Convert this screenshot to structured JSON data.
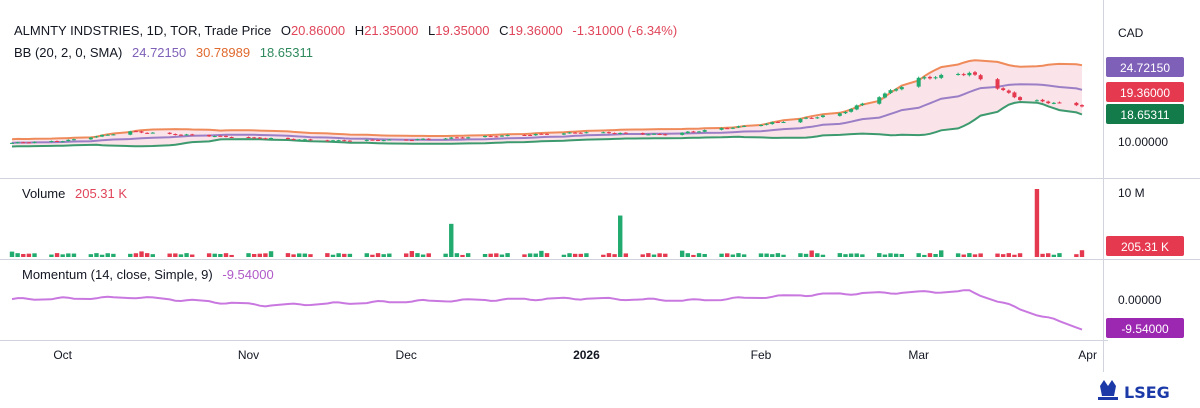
{
  "header": {
    "symbol": "ALMNTY INDSTRIES, 1D, TOR, Trade Price",
    "open_label": "O",
    "open": "20.86000",
    "high_label": "H",
    "high": "21.35000",
    "low_label": "L",
    "low": "19.35000",
    "close_label": "C",
    "close": "19.36000",
    "change": "-1.31000 (-6.34%)"
  },
  "bb": {
    "label": "BB (20, 2, 0, SMA)",
    "basis": "24.72150",
    "upper": "30.78989",
    "lower": "18.65311"
  },
  "volume": {
    "label": "Volume",
    "value": "205.31 K",
    "axis_tick": "10 M",
    "tag": "205.31 K"
  },
  "momentum": {
    "label": "Momentum (14, close, Simple, 9)",
    "value": "-9.54000",
    "axis_tick": "0.00000",
    "tag": "-9.54000"
  },
  "price_axis": {
    "currency": "CAD",
    "tick": "10.00000",
    "tag_basis": "24.72150",
    "tag_close": "19.36000",
    "tag_lower": "18.65311"
  },
  "x_axis": {
    "labels": [
      "Oct",
      "Nov",
      "Dec",
      "2026",
      "Feb",
      "Mar",
      "Apr"
    ]
  },
  "branding": {
    "logo": "LSEG"
  },
  "colors": {
    "up": "#26a69a",
    "up_strong": "#22ab6e",
    "down": "#ef5350",
    "down_strong": "#e53950",
    "basis": "#9b7fc6",
    "upper": "#ef8a5a",
    "lower": "#3d9a6e",
    "momentum": "#c978e0",
    "band_fill": "#fbe3ea"
  },
  "chart_data": [
    {
      "type": "candlestick",
      "title": "ALMNTY INDSTRIES, 1D, TOR, Trade Price",
      "x_range": [
        "2025-09-22",
        "2026-03-31"
      ],
      "ohlc_last": {
        "open": 20.86,
        "high": 21.35,
        "low": 19.35,
        "close": 19.36
      },
      "y_ticks": [
        10.0
      ],
      "anchors": [
        {
          "date": "2025-09-22",
          "close": 9.5
        },
        {
          "date": "2025-10-01",
          "close": 10.0
        },
        {
          "date": "2025-10-13",
          "close": 12.5
        },
        {
          "date": "2025-10-20",
          "close": 11.8
        },
        {
          "date": "2025-11-03",
          "close": 10.9
        },
        {
          "date": "2025-11-17",
          "close": 10.1
        },
        {
          "date": "2025-12-01",
          "close": 10.3
        },
        {
          "date": "2025-12-15",
          "close": 11.2
        },
        {
          "date": "2026-01-02",
          "close": 12.3
        },
        {
          "date": "2026-01-16",
          "close": 11.7
        },
        {
          "date": "2026-02-02",
          "close": 14.4
        },
        {
          "date": "2026-02-16",
          "close": 17.2
        },
        {
          "date": "2026-03-02",
          "close": 26.5
        },
        {
          "date": "2026-03-11",
          "close": 28.0
        },
        {
          "date": "2026-03-20",
          "close": 21.0
        },
        {
          "date": "2026-03-31",
          "close": 19.36
        }
      ],
      "bollinger": {
        "period": 20,
        "mult": 2,
        "basis_last": 24.7215,
        "upper_last": 30.78989,
        "lower_last": 18.65311
      }
    },
    {
      "type": "bar",
      "title": "Volume",
      "last_value": "205.31 K",
      "y_ticks": [
        "10 M"
      ],
      "spikes": [
        {
          "date": "2025-12-09",
          "value": 4.0
        },
        {
          "date": "2026-01-08",
          "value": 5.0
        },
        {
          "date": "2026-03-23",
          "value": 8.2
        }
      ]
    },
    {
      "type": "line",
      "title": "Momentum (14, close, Simple, 9)",
      "last_value": -9.54,
      "y_ticks": [
        0.0
      ],
      "anchors": [
        {
          "date": "2025-09-22",
          "value": 0.3
        },
        {
          "date": "2025-10-14",
          "value": 0.9
        },
        {
          "date": "2025-11-06",
          "value": -1.8
        },
        {
          "date": "2025-12-01",
          "value": -0.4
        },
        {
          "date": "2026-01-02",
          "value": 0.5
        },
        {
          "date": "2026-01-21",
          "value": -0.1
        },
        {
          "date": "2026-02-12",
          "value": 1.8
        },
        {
          "date": "2026-03-11",
          "value": 3.0
        },
        {
          "date": "2026-03-20",
          "value": -3.0
        },
        {
          "date": "2026-03-31",
          "value": -9.54
        }
      ]
    }
  ]
}
